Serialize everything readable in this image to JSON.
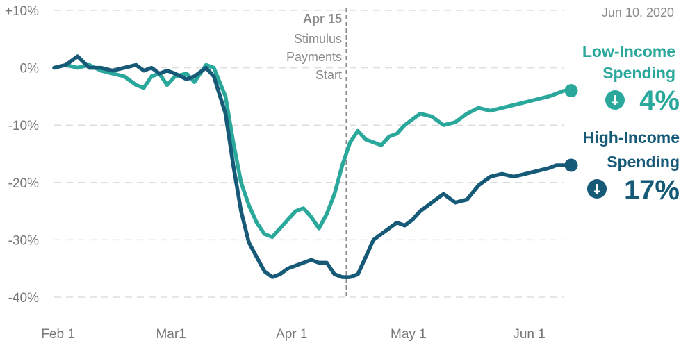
{
  "date_label": "Jun 10, 2020",
  "colors": {
    "low": "#2ba89c",
    "high": "#165a78",
    "grid": "#dddddd"
  },
  "annotation": {
    "date": "Apr 15",
    "lines": [
      "Stimulus",
      "Payments",
      "Start"
    ],
    "x": "2020-04-15"
  },
  "summary": {
    "low": {
      "line1": "Low-Income",
      "line2": "Spending",
      "value": "4%",
      "arrow_icon": "down-arrow-icon"
    },
    "high": {
      "line1": "High-Income",
      "line2": "Spending",
      "value": "17%",
      "arrow_icon": "down-arrow-icon"
    }
  },
  "chart_data": {
    "type": "line",
    "x_range": [
      "2020-01-31",
      "2020-06-10"
    ],
    "ylim": [
      -40,
      10
    ],
    "yticks": [
      10,
      0,
      -10,
      -20,
      -30,
      -40
    ],
    "ytick_labels": [
      "+10%",
      "0%",
      "-10%",
      "-20%",
      "-30%",
      "-40%"
    ],
    "xticks": [
      "2020-02-01",
      "2020-03-01",
      "2020-04-01",
      "2020-05-01",
      "2020-06-01"
    ],
    "xtick_labels": [
      "Feb 1",
      "Mar1",
      "Apr 1",
      "May 1",
      "Jun 1"
    ],
    "grid": true,
    "series": [
      {
        "name": "Low-Income Spending",
        "color": "#2ba89c",
        "x": [
          "2020-01-31",
          "2020-02-03",
          "2020-02-06",
          "2020-02-09",
          "2020-02-12",
          "2020-02-15",
          "2020-02-18",
          "2020-02-21",
          "2020-02-23",
          "2020-02-25",
          "2020-02-27",
          "2020-02-29",
          "2020-03-02",
          "2020-03-05",
          "2020-03-07",
          "2020-03-10",
          "2020-03-12",
          "2020-03-15",
          "2020-03-17",
          "2020-03-19",
          "2020-03-21",
          "2020-03-23",
          "2020-03-25",
          "2020-03-27",
          "2020-03-29",
          "2020-03-31",
          "2020-04-02",
          "2020-04-04",
          "2020-04-06",
          "2020-04-08",
          "2020-04-10",
          "2020-04-12",
          "2020-04-14",
          "2020-04-16",
          "2020-04-18",
          "2020-04-20",
          "2020-04-22",
          "2020-04-24",
          "2020-04-26",
          "2020-04-28",
          "2020-04-30",
          "2020-05-02",
          "2020-05-04",
          "2020-05-07",
          "2020-05-10",
          "2020-05-13",
          "2020-05-16",
          "2020-05-19",
          "2020-05-22",
          "2020-05-25",
          "2020-05-28",
          "2020-05-31",
          "2020-06-03",
          "2020-06-06",
          "2020-06-08",
          "2020-06-10"
        ],
        "y": [
          0,
          0.5,
          0,
          0.5,
          -0.5,
          -1,
          -1.5,
          -3,
          -3.5,
          -1.5,
          -1,
          -3,
          -1.5,
          -1,
          -2.5,
          0.5,
          0,
          -5,
          -13,
          -20,
          -24,
          -27,
          -29,
          -29.5,
          -28,
          -26.5,
          -25,
          -24.5,
          -26,
          -28,
          -25.5,
          -22,
          -17,
          -13,
          -11,
          -12.5,
          -13,
          -13.5,
          -12,
          -11.5,
          -10,
          -9,
          -8,
          -8.5,
          -10,
          -9.5,
          -8,
          -7,
          -7.5,
          -7,
          -6.5,
          -6,
          -5.5,
          -5,
          -4.5,
          -4
        ]
      },
      {
        "name": "High-Income Spending",
        "color": "#165a78",
        "x": [
          "2020-01-31",
          "2020-02-03",
          "2020-02-06",
          "2020-02-09",
          "2020-02-12",
          "2020-02-15",
          "2020-02-18",
          "2020-02-21",
          "2020-02-23",
          "2020-02-25",
          "2020-02-27",
          "2020-02-29",
          "2020-03-02",
          "2020-03-05",
          "2020-03-07",
          "2020-03-10",
          "2020-03-12",
          "2020-03-15",
          "2020-03-17",
          "2020-03-19",
          "2020-03-21",
          "2020-03-23",
          "2020-03-25",
          "2020-03-27",
          "2020-03-29",
          "2020-03-31",
          "2020-04-02",
          "2020-04-04",
          "2020-04-06",
          "2020-04-08",
          "2020-04-10",
          "2020-04-12",
          "2020-04-14",
          "2020-04-16",
          "2020-04-18",
          "2020-04-20",
          "2020-04-22",
          "2020-04-24",
          "2020-04-26",
          "2020-04-28",
          "2020-04-30",
          "2020-05-02",
          "2020-05-04",
          "2020-05-07",
          "2020-05-10",
          "2020-05-13",
          "2020-05-16",
          "2020-05-19",
          "2020-05-22",
          "2020-05-25",
          "2020-05-28",
          "2020-05-31",
          "2020-06-03",
          "2020-06-06",
          "2020-06-08",
          "2020-06-10"
        ],
        "y": [
          0,
          0.5,
          2,
          0,
          0,
          -0.5,
          0,
          0.5,
          -0.5,
          0,
          -1,
          -0.5,
          -1,
          -2,
          -1.5,
          0,
          -1.5,
          -8,
          -17,
          -25,
          -30.5,
          -33,
          -35.5,
          -36.5,
          -36,
          -35,
          -34.5,
          -34,
          -33.5,
          -34,
          -34,
          -36,
          -36.5,
          -36.5,
          -36,
          -33,
          -30,
          -29,
          -28,
          -27,
          -27.5,
          -26.5,
          -25,
          -23.5,
          -22,
          -23.5,
          -23,
          -20.5,
          -19,
          -18.5,
          -19,
          -18.5,
          -18,
          -17.5,
          -17,
          -17
        ]
      }
    ]
  }
}
